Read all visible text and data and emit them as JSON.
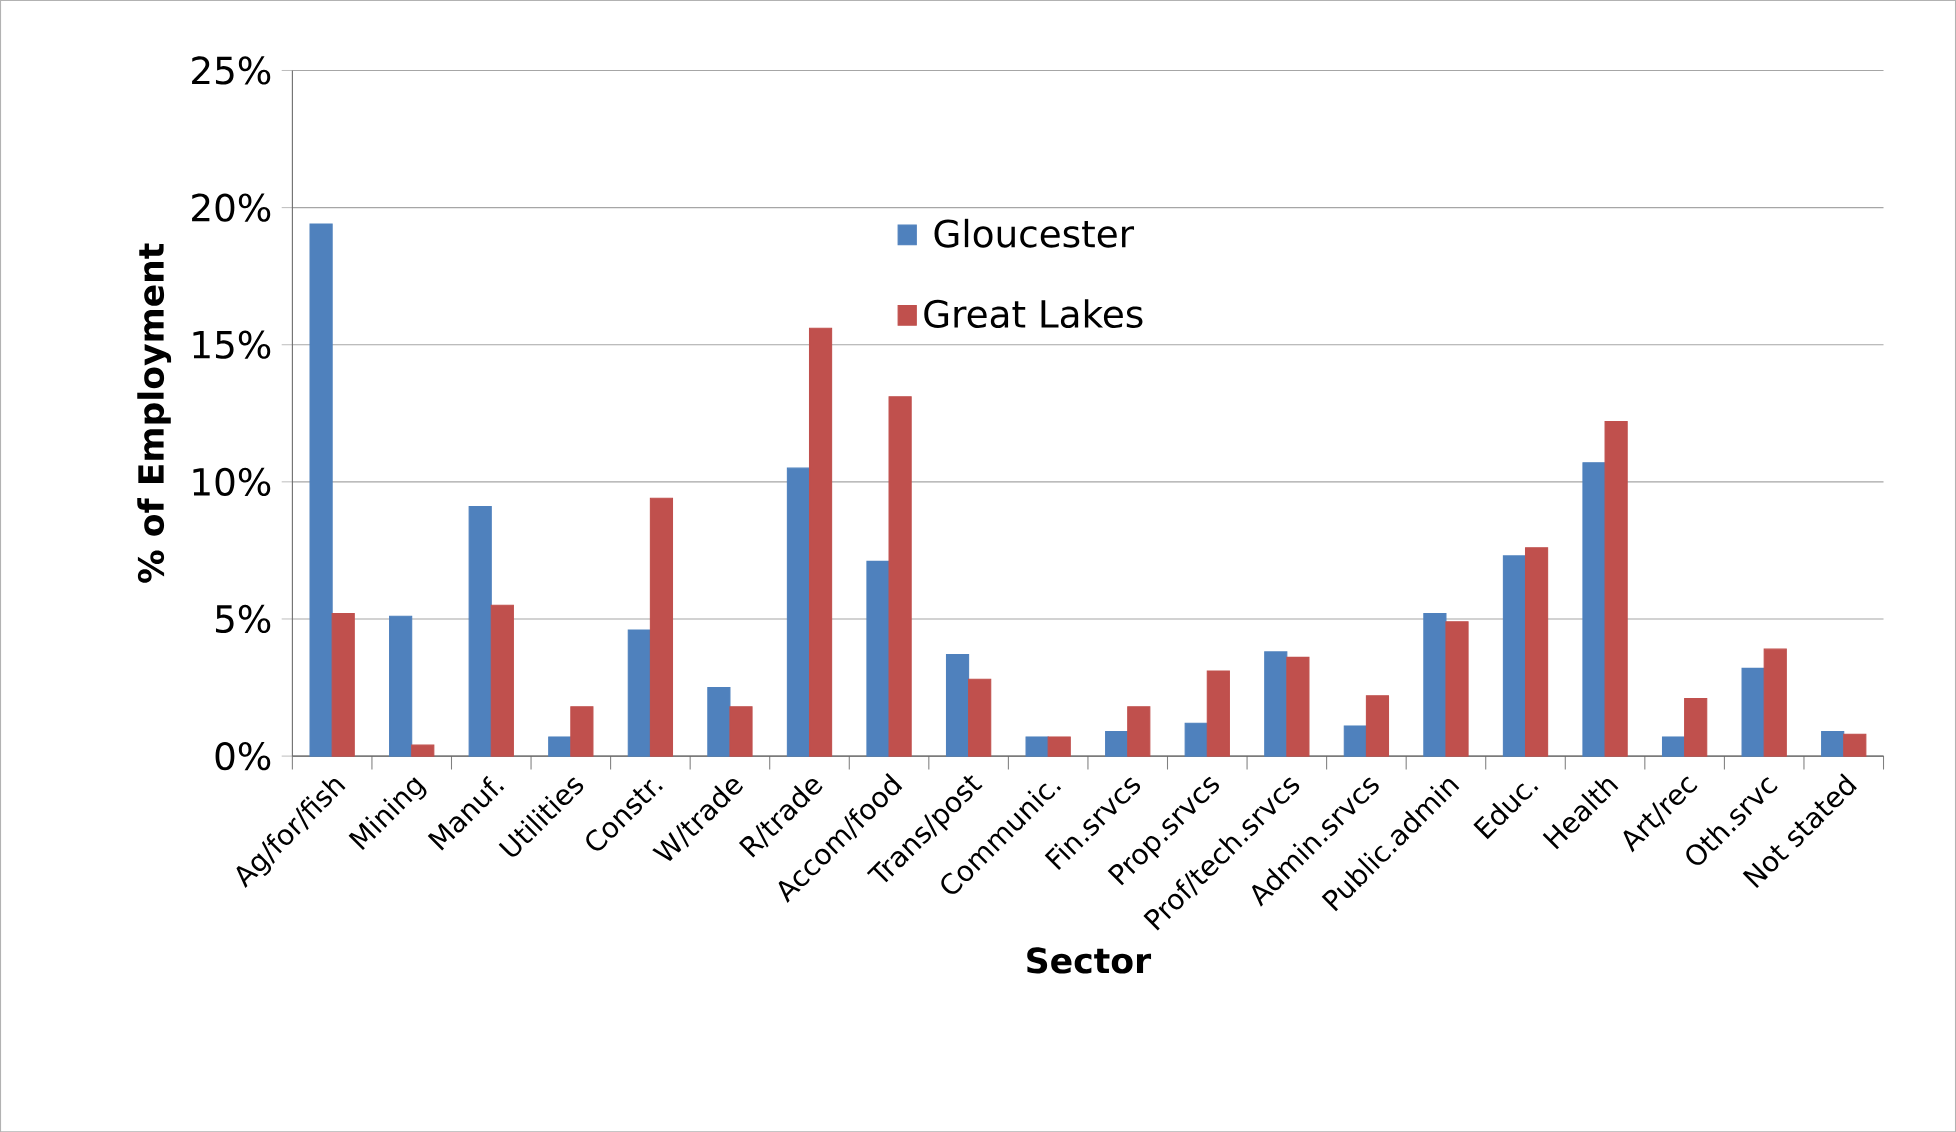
{
  "chart_data": {
    "type": "bar",
    "xlabel": "Sector",
    "ylabel": "% of Employment",
    "categories": [
      "Ag/for/fish",
      "Mining",
      "Manuf.",
      "Utilities",
      "Constr.",
      "W/trade",
      "R/trade",
      "Accom/food",
      "Trans/post",
      "Communic.",
      "Fin.srvcs",
      "Prop.srvcs",
      "Prof/tech.srvcs",
      "Admin.srvcs",
      "Public.admin",
      "Educ.",
      "Health",
      "Art/rec",
      "Oth.srvc",
      "Not stated"
    ],
    "series": [
      {
        "name": "Gloucester",
        "color": "#4f81bd",
        "values": [
          19.4,
          5.1,
          9.1,
          0.7,
          4.6,
          2.5,
          10.5,
          7.1,
          3.7,
          0.7,
          0.9,
          1.2,
          3.8,
          1.1,
          5.2,
          7.3,
          10.7,
          0.7,
          3.2,
          0.9
        ]
      },
      {
        "name": "Great Lakes",
        "color": "#c0504d",
        "values": [
          5.2,
          0.4,
          5.5,
          1.8,
          9.4,
          1.8,
          15.6,
          13.1,
          2.8,
          0.7,
          1.8,
          3.1,
          3.6,
          2.2,
          4.9,
          7.6,
          12.2,
          2.1,
          3.9,
          0.8
        ]
      }
    ],
    "ylim": [
      0,
      25
    ],
    "yticks": [
      {
        "value": 0,
        "label": "0%"
      },
      {
        "value": 5,
        "label": "5%"
      },
      {
        "value": 10,
        "label": "10%"
      },
      {
        "value": 15,
        "label": "15%"
      },
      {
        "value": 20,
        "label": "20%"
      },
      {
        "value": 25,
        "label": "25%"
      }
    ],
    "grid": "y",
    "legend": "top"
  }
}
